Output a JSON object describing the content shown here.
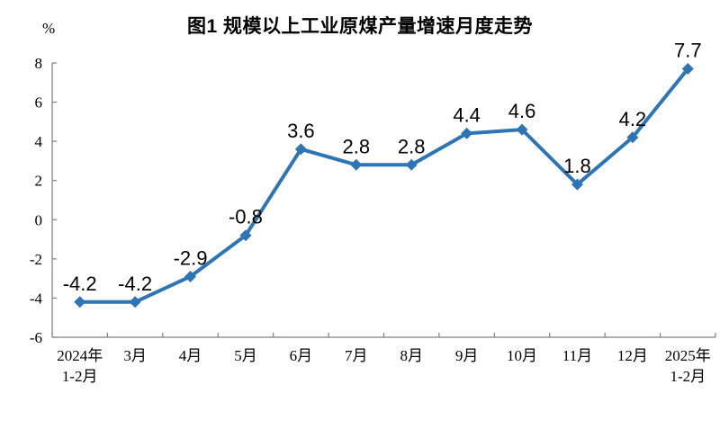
{
  "chart_data": {
    "type": "line",
    "title": "图1 规模以上工业原煤产量增速月度走势",
    "ylabel": "%",
    "categories": [
      "2024年\n1-2月",
      "3月",
      "4月",
      "5月",
      "6月",
      "7月",
      "8月",
      "9月",
      "10月",
      "11月",
      "12月",
      "2025年\n1-2月"
    ],
    "values": [
      -4.2,
      -4.2,
      -2.9,
      -0.8,
      3.6,
      2.8,
      2.8,
      4.4,
      4.6,
      1.8,
      4.2,
      7.7
    ],
    "data_labels": [
      "-4.2",
      "-4.2",
      "-2.9",
      "-0.8",
      "3.6",
      "2.8",
      "2.8",
      "4.4",
      "4.6",
      "1.8",
      "4.2",
      "7.7"
    ],
    "yticks": [
      -6,
      -4,
      -2,
      0,
      2,
      4,
      6,
      8
    ],
    "ylim": [
      -6,
      8
    ],
    "grid": false,
    "legend": "none",
    "marker": "diamond",
    "line_color": "#2E75B6",
    "axis_color": "#7f7f7f",
    "text_color": "#000000"
  }
}
